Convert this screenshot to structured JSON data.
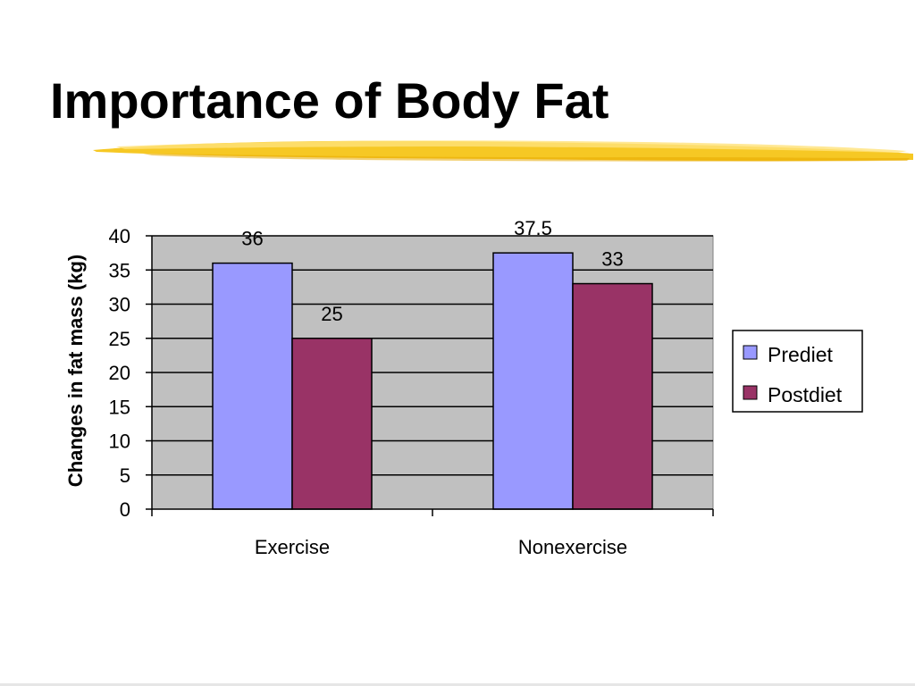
{
  "slide": {
    "title": "Importance of Body Fat"
  },
  "chart_data": {
    "type": "bar",
    "categories": [
      "Exercise",
      "Nonexercise"
    ],
    "series": [
      {
        "name": "Prediet",
        "values": [
          36,
          37.5
        ],
        "color": "#9999ff"
      },
      {
        "name": "Postdiet",
        "values": [
          25,
          33
        ],
        "color": "#993366"
      }
    ],
    "ylabel": "Changes in fat mass (kg)",
    "ylim": [
      0,
      40
    ],
    "yticks": [
      "0",
      "5",
      "10",
      "15",
      "20",
      "25",
      "30",
      "35",
      "40"
    ],
    "data_labels": [
      [
        "36",
        "37.5"
      ],
      [
        "25",
        "33"
      ]
    ],
    "plot_background": "#c0c0c0",
    "grid": true,
    "legend_position": "right"
  },
  "colors": {
    "title_underline": "#f5c518"
  }
}
